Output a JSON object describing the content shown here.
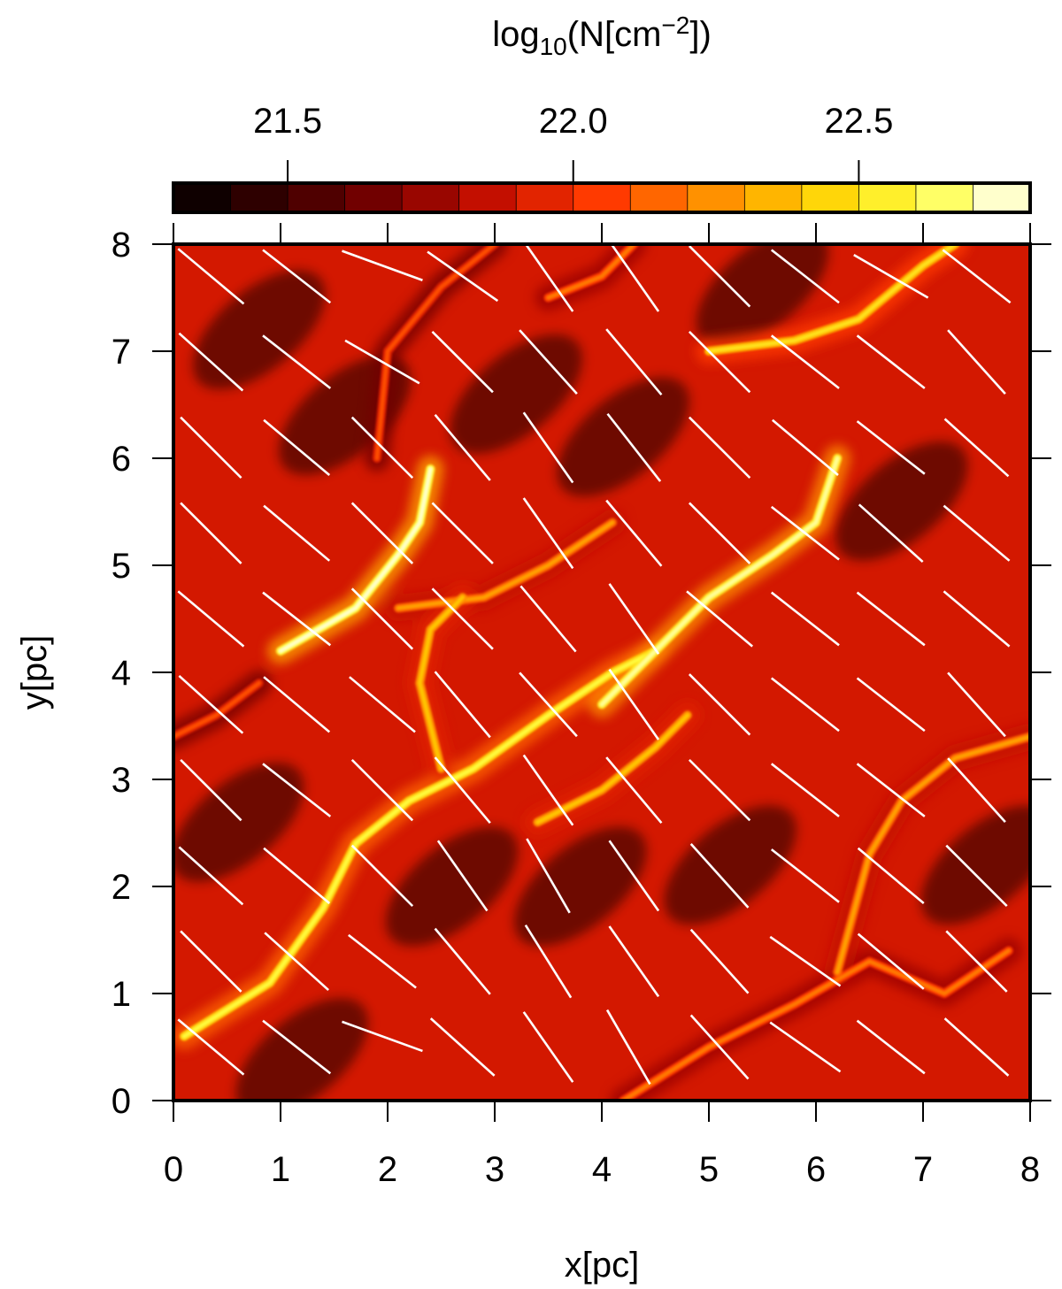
{
  "chart_data": {
    "type": "heatmap",
    "title": "",
    "xlabel": "x[pc]",
    "ylabel": "y[pc]",
    "xlim": [
      0,
      8
    ],
    "ylim": [
      0,
      8
    ],
    "x_ticks": [
      "0",
      "1",
      "2",
      "3",
      "4",
      "5",
      "6",
      "7",
      "8"
    ],
    "y_ticks": [
      "0",
      "1",
      "2",
      "3",
      "4",
      "5",
      "6",
      "7",
      "8"
    ],
    "colorbar": {
      "label_prefix": "log",
      "label_sub": "10",
      "label_mid": "(N[cm",
      "label_sup": "−2",
      "label_suffix": "])",
      "range": [
        21.3,
        22.8
      ],
      "ticks": [
        {
          "value": 21.5,
          "label": "21.5"
        },
        {
          "value": 22.0,
          "label": "22.0"
        },
        {
          "value": 22.5,
          "label": "22.5"
        }
      ],
      "colors": [
        "#000000",
        "#3a0000",
        "#7a0000",
        "#c81000",
        "#ff3a00",
        "#ff8c00",
        "#ffd000",
        "#ffff40",
        "#ffffff"
      ],
      "bins": 15
    },
    "background_value": 21.9,
    "filaments": [
      {
        "points": [
          [
            0.1,
            0.6
          ],
          [
            0.9,
            1.1
          ],
          [
            1.4,
            1.8
          ],
          [
            1.7,
            2.4
          ],
          [
            2.2,
            2.8
          ],
          [
            2.8,
            3.1
          ],
          [
            3.5,
            3.6
          ],
          [
            4.1,
            4.0
          ],
          [
            4.5,
            4.2
          ]
        ],
        "value": 22.6
      },
      {
        "points": [
          [
            1.0,
            4.2
          ],
          [
            1.7,
            4.6
          ],
          [
            2.1,
            5.1
          ],
          [
            2.3,
            5.4
          ],
          [
            2.4,
            5.9
          ]
        ],
        "value": 22.75
      },
      {
        "points": [
          [
            4.0,
            3.7
          ],
          [
            4.6,
            4.3
          ],
          [
            5.0,
            4.7
          ],
          [
            5.6,
            5.1
          ],
          [
            6.0,
            5.4
          ],
          [
            6.2,
            6.0
          ]
        ],
        "value": 22.7
      },
      {
        "points": [
          [
            3.4,
            2.6
          ],
          [
            4.0,
            2.9
          ],
          [
            4.5,
            3.3
          ],
          [
            4.8,
            3.6
          ]
        ],
        "value": 22.4
      },
      {
        "points": [
          [
            2.1,
            4.6
          ],
          [
            2.9,
            4.7
          ],
          [
            3.5,
            5.0
          ],
          [
            4.1,
            5.4
          ]
        ],
        "value": 22.3
      },
      {
        "points": [
          [
            2.5,
            3.1
          ],
          [
            2.3,
            3.9
          ],
          [
            2.4,
            4.4
          ],
          [
            2.7,
            4.7
          ]
        ],
        "value": 22.4
      },
      {
        "points": [
          [
            5.0,
            7.0
          ],
          [
            5.8,
            7.1
          ],
          [
            6.4,
            7.3
          ],
          [
            7.0,
            7.8
          ],
          [
            7.3,
            8.0
          ]
        ],
        "value": 22.5
      },
      {
        "points": [
          [
            4.2,
            0.0
          ],
          [
            5.0,
            0.5
          ],
          [
            5.8,
            0.9
          ],
          [
            6.5,
            1.3
          ],
          [
            7.2,
            1.0
          ],
          [
            7.8,
            1.4
          ]
        ],
        "value": 22.2
      },
      {
        "points": [
          [
            6.2,
            1.2
          ],
          [
            6.5,
            2.3
          ],
          [
            6.8,
            2.8
          ],
          [
            7.3,
            3.2
          ],
          [
            8.0,
            3.4
          ]
        ],
        "value": 22.3
      },
      {
        "points": [
          [
            1.9,
            6.0
          ],
          [
            2.0,
            7.0
          ],
          [
            2.5,
            7.6
          ],
          [
            3.0,
            8.0
          ]
        ],
        "value": 22.1
      },
      {
        "points": [
          [
            3.5,
            7.5
          ],
          [
            4.0,
            7.7
          ],
          [
            4.3,
            8.0
          ]
        ],
        "value": 22.2
      },
      {
        "points": [
          [
            0.0,
            3.4
          ],
          [
            0.4,
            3.6
          ],
          [
            0.8,
            3.9
          ]
        ],
        "value": 22.1
      }
    ],
    "vectors": {
      "positions": [
        [
          0.35,
          0.5
        ],
        [
          1.15,
          0.5
        ],
        [
          1.95,
          0.6
        ],
        [
          2.7,
          0.5
        ],
        [
          3.5,
          0.5
        ],
        [
          4.25,
          0.5
        ],
        [
          5.1,
          0.5
        ],
        [
          5.9,
          0.5
        ],
        [
          6.7,
          0.5
        ],
        [
          7.5,
          0.5
        ],
        [
          0.35,
          1.3
        ],
        [
          1.15,
          1.3
        ],
        [
          1.95,
          1.3
        ],
        [
          2.7,
          1.3
        ],
        [
          3.5,
          1.3
        ],
        [
          4.3,
          1.3
        ],
        [
          5.1,
          1.3
        ],
        [
          5.9,
          1.3
        ],
        [
          6.7,
          1.3
        ],
        [
          7.5,
          1.3
        ],
        [
          0.35,
          2.1
        ],
        [
          1.15,
          2.1
        ],
        [
          1.95,
          2.1
        ],
        [
          2.7,
          2.1
        ],
        [
          3.5,
          2.1
        ],
        [
          4.3,
          2.1
        ],
        [
          5.1,
          2.1
        ],
        [
          5.9,
          2.1
        ],
        [
          6.7,
          2.1
        ],
        [
          7.5,
          2.1
        ],
        [
          0.35,
          2.9
        ],
        [
          1.15,
          2.9
        ],
        [
          1.95,
          2.9
        ],
        [
          2.7,
          2.9
        ],
        [
          3.5,
          2.9
        ],
        [
          4.3,
          2.9
        ],
        [
          5.1,
          2.9
        ],
        [
          5.9,
          2.9
        ],
        [
          6.7,
          2.9
        ],
        [
          7.5,
          2.9
        ],
        [
          0.35,
          3.7
        ],
        [
          1.15,
          3.7
        ],
        [
          1.95,
          3.7
        ],
        [
          2.7,
          3.7
        ],
        [
          3.5,
          3.7
        ],
        [
          4.3,
          3.7
        ],
        [
          5.1,
          3.7
        ],
        [
          5.9,
          3.7
        ],
        [
          6.7,
          3.7
        ],
        [
          7.5,
          3.7
        ],
        [
          0.35,
          4.5
        ],
        [
          1.15,
          4.5
        ],
        [
          1.95,
          4.5
        ],
        [
          2.7,
          4.5
        ],
        [
          3.5,
          4.5
        ],
        [
          4.3,
          4.5
        ],
        [
          5.1,
          4.5
        ],
        [
          5.9,
          4.5
        ],
        [
          6.7,
          4.5
        ],
        [
          7.5,
          4.5
        ],
        [
          0.35,
          5.3
        ],
        [
          1.15,
          5.3
        ],
        [
          1.95,
          5.3
        ],
        [
          2.7,
          5.3
        ],
        [
          3.5,
          5.3
        ],
        [
          4.3,
          5.3
        ],
        [
          5.1,
          5.3
        ],
        [
          5.9,
          5.3
        ],
        [
          6.7,
          5.3
        ],
        [
          7.5,
          5.3
        ],
        [
          0.35,
          6.1
        ],
        [
          1.15,
          6.1
        ],
        [
          1.95,
          6.1
        ],
        [
          2.7,
          6.1
        ],
        [
          3.5,
          6.1
        ],
        [
          4.3,
          6.1
        ],
        [
          5.1,
          6.1
        ],
        [
          5.9,
          6.1
        ],
        [
          6.7,
          6.1
        ],
        [
          7.5,
          6.1
        ],
        [
          0.35,
          6.9
        ],
        [
          1.15,
          6.9
        ],
        [
          1.95,
          6.9
        ],
        [
          2.7,
          6.9
        ],
        [
          3.5,
          6.9
        ],
        [
          4.3,
          6.9
        ],
        [
          5.1,
          6.9
        ],
        [
          5.9,
          6.9
        ],
        [
          6.7,
          6.9
        ],
        [
          7.5,
          6.9
        ],
        [
          0.35,
          7.7
        ],
        [
          1.15,
          7.7
        ],
        [
          1.95,
          7.8
        ],
        [
          2.7,
          7.7
        ],
        [
          3.5,
          7.7
        ],
        [
          4.3,
          7.7
        ],
        [
          5.1,
          7.7
        ],
        [
          5.9,
          7.7
        ],
        [
          6.7,
          7.7
        ],
        [
          7.5,
          7.7
        ]
      ],
      "angles_deg": [
        -40,
        -38,
        -20,
        -42,
        -55,
        -60,
        -48,
        -35,
        -38,
        -42,
        -45,
        -42,
        -38,
        -50,
        -58,
        -55,
        -48,
        -35,
        -40,
        -45,
        -42,
        -40,
        -45,
        -55,
        -60,
        -55,
        -48,
        -38,
        -40,
        -45,
        -45,
        -38,
        -45,
        -50,
        -55,
        -50,
        -45,
        -38,
        -38,
        -48,
        -42,
        -40,
        -40,
        -50,
        -48,
        -55,
        -45,
        -38,
        -38,
        -48,
        -40,
        -38,
        -45,
        -45,
        -50,
        -55,
        -40,
        -38,
        -38,
        -40,
        -45,
        -40,
        -45,
        -45,
        -55,
        -50,
        -45,
        -38,
        -42,
        -40,
        -45,
        -40,
        -45,
        -50,
        -55,
        -52,
        -45,
        -40,
        -38,
        -42,
        -42,
        -38,
        -30,
        -45,
        -48,
        -50,
        -45,
        -38,
        -38,
        -48,
        -40,
        -38,
        -20,
        -35,
        -55,
        -55,
        -45,
        -38,
        -30,
        -38
      ],
      "length_pc": 0.8
    }
  }
}
